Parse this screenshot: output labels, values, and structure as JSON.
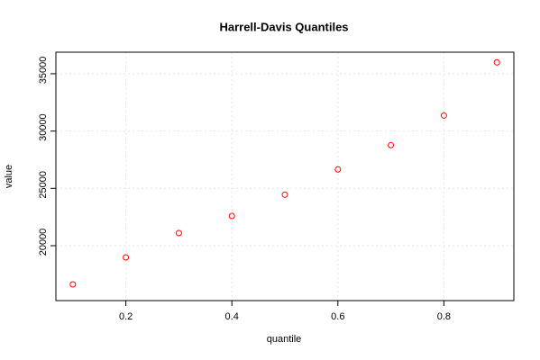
{
  "chart_data": {
    "type": "scatter",
    "title": "Harrell-Davis Quantiles",
    "x_label": "quantile",
    "y_label": "value",
    "x": [
      0.1,
      0.2,
      0.3,
      0.4,
      0.5,
      0.6,
      0.7,
      0.8,
      0.9
    ],
    "series": [
      {
        "name": "value",
        "color": "#ff0000",
        "values": [
          16625,
          18980,
          21100,
          22590,
          24450,
          26650,
          28770,
          31350,
          35990
        ]
      }
    ],
    "xlim": [
      0.068,
      0.932
    ],
    "ylim": [
      15210,
      36880
    ],
    "xticks": [
      0.2,
      0.4,
      0.6,
      0.8
    ],
    "yticks": [
      20000,
      25000,
      30000,
      35000
    ],
    "grid": true
  }
}
